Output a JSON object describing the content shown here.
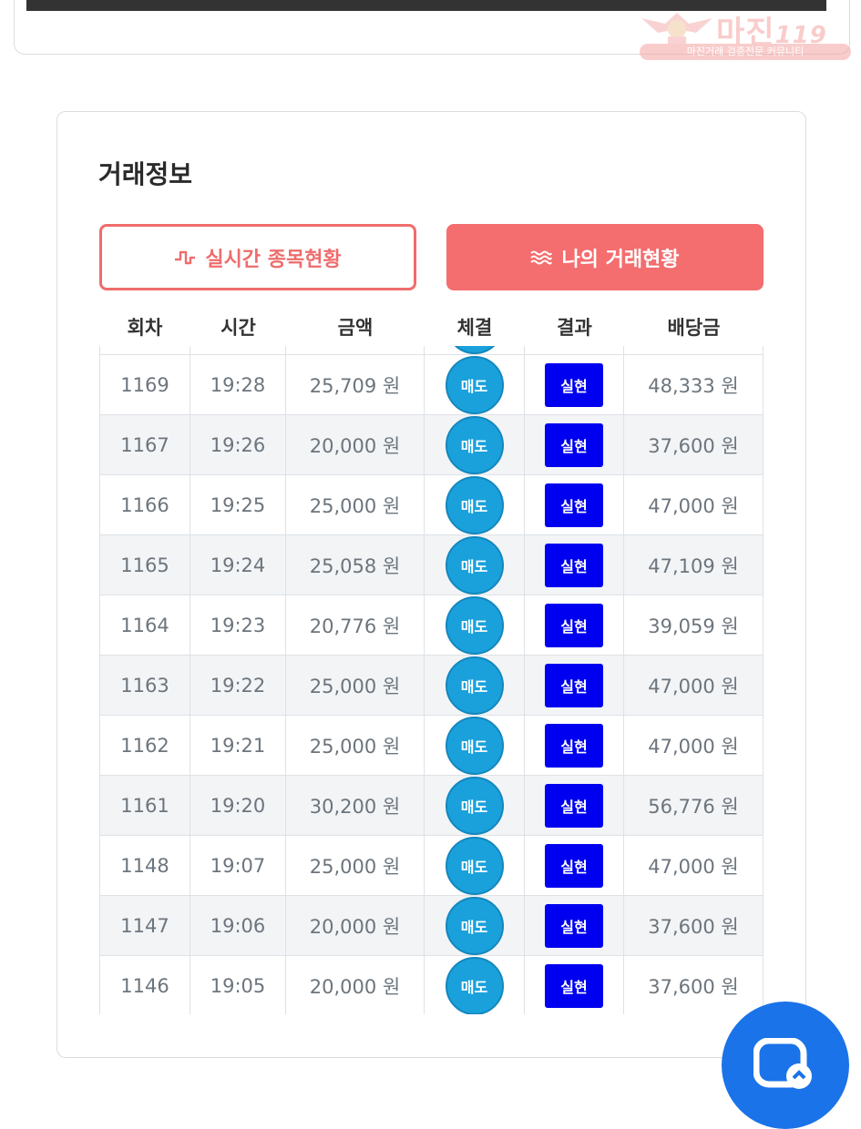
{
  "watermark": {
    "title": "마진",
    "suffix": "119",
    "subtitle": "마진거래 검증전문 커뮤니티"
  },
  "section": {
    "title": "거래정보"
  },
  "tabs": {
    "realtime_label": "실시간 종목현황",
    "mytrade_label": "나의 거래현황"
  },
  "table": {
    "headers": [
      "회차",
      "시간",
      "금액",
      "체결",
      "결과",
      "배당금"
    ],
    "rows": [
      {
        "round": "1169",
        "time": "19:28",
        "amount": "25,709 원",
        "side": "매도",
        "result": "실현",
        "payout": "48,333 원"
      },
      {
        "round": "1167",
        "time": "19:26",
        "amount": "20,000 원",
        "side": "매도",
        "result": "실현",
        "payout": "37,600 원"
      },
      {
        "round": "1166",
        "time": "19:25",
        "amount": "25,000 원",
        "side": "매도",
        "result": "실현",
        "payout": "47,000 원"
      },
      {
        "round": "1165",
        "time": "19:24",
        "amount": "25,058 원",
        "side": "매도",
        "result": "실현",
        "payout": "47,109 원"
      },
      {
        "round": "1164",
        "time": "19:23",
        "amount": "20,776 원",
        "side": "매도",
        "result": "실현",
        "payout": "39,059 원"
      },
      {
        "round": "1163",
        "time": "19:22",
        "amount": "25,000 원",
        "side": "매도",
        "result": "실현",
        "payout": "47,000 원"
      },
      {
        "round": "1162",
        "time": "19:21",
        "amount": "25,000 원",
        "side": "매도",
        "result": "실현",
        "payout": "47,000 원"
      },
      {
        "round": "1161",
        "time": "19:20",
        "amount": "30,200 원",
        "side": "매도",
        "result": "실현",
        "payout": "56,776 원"
      },
      {
        "round": "1148",
        "time": "19:07",
        "amount": "25,000 원",
        "side": "매도",
        "result": "실현",
        "payout": "47,000 원"
      },
      {
        "round": "1147",
        "time": "19:06",
        "amount": "20,000 원",
        "side": "매도",
        "result": "실현",
        "payout": "37,600 원"
      },
      {
        "round": "1146",
        "time": "19:05",
        "amount": "20,000 원",
        "side": "매도",
        "result": "실현",
        "payout": "37,600 원"
      }
    ]
  },
  "colors": {
    "accent": "#f46d6f",
    "sell_badge": "#1aa1dc",
    "result_badge": "#0000f0",
    "chat_fab": "#1a73e8"
  },
  "icons": {
    "realtime": "pulse-wave-icon",
    "mytrade": "wave-lines-icon",
    "chat": "chat-bubble-icon"
  }
}
